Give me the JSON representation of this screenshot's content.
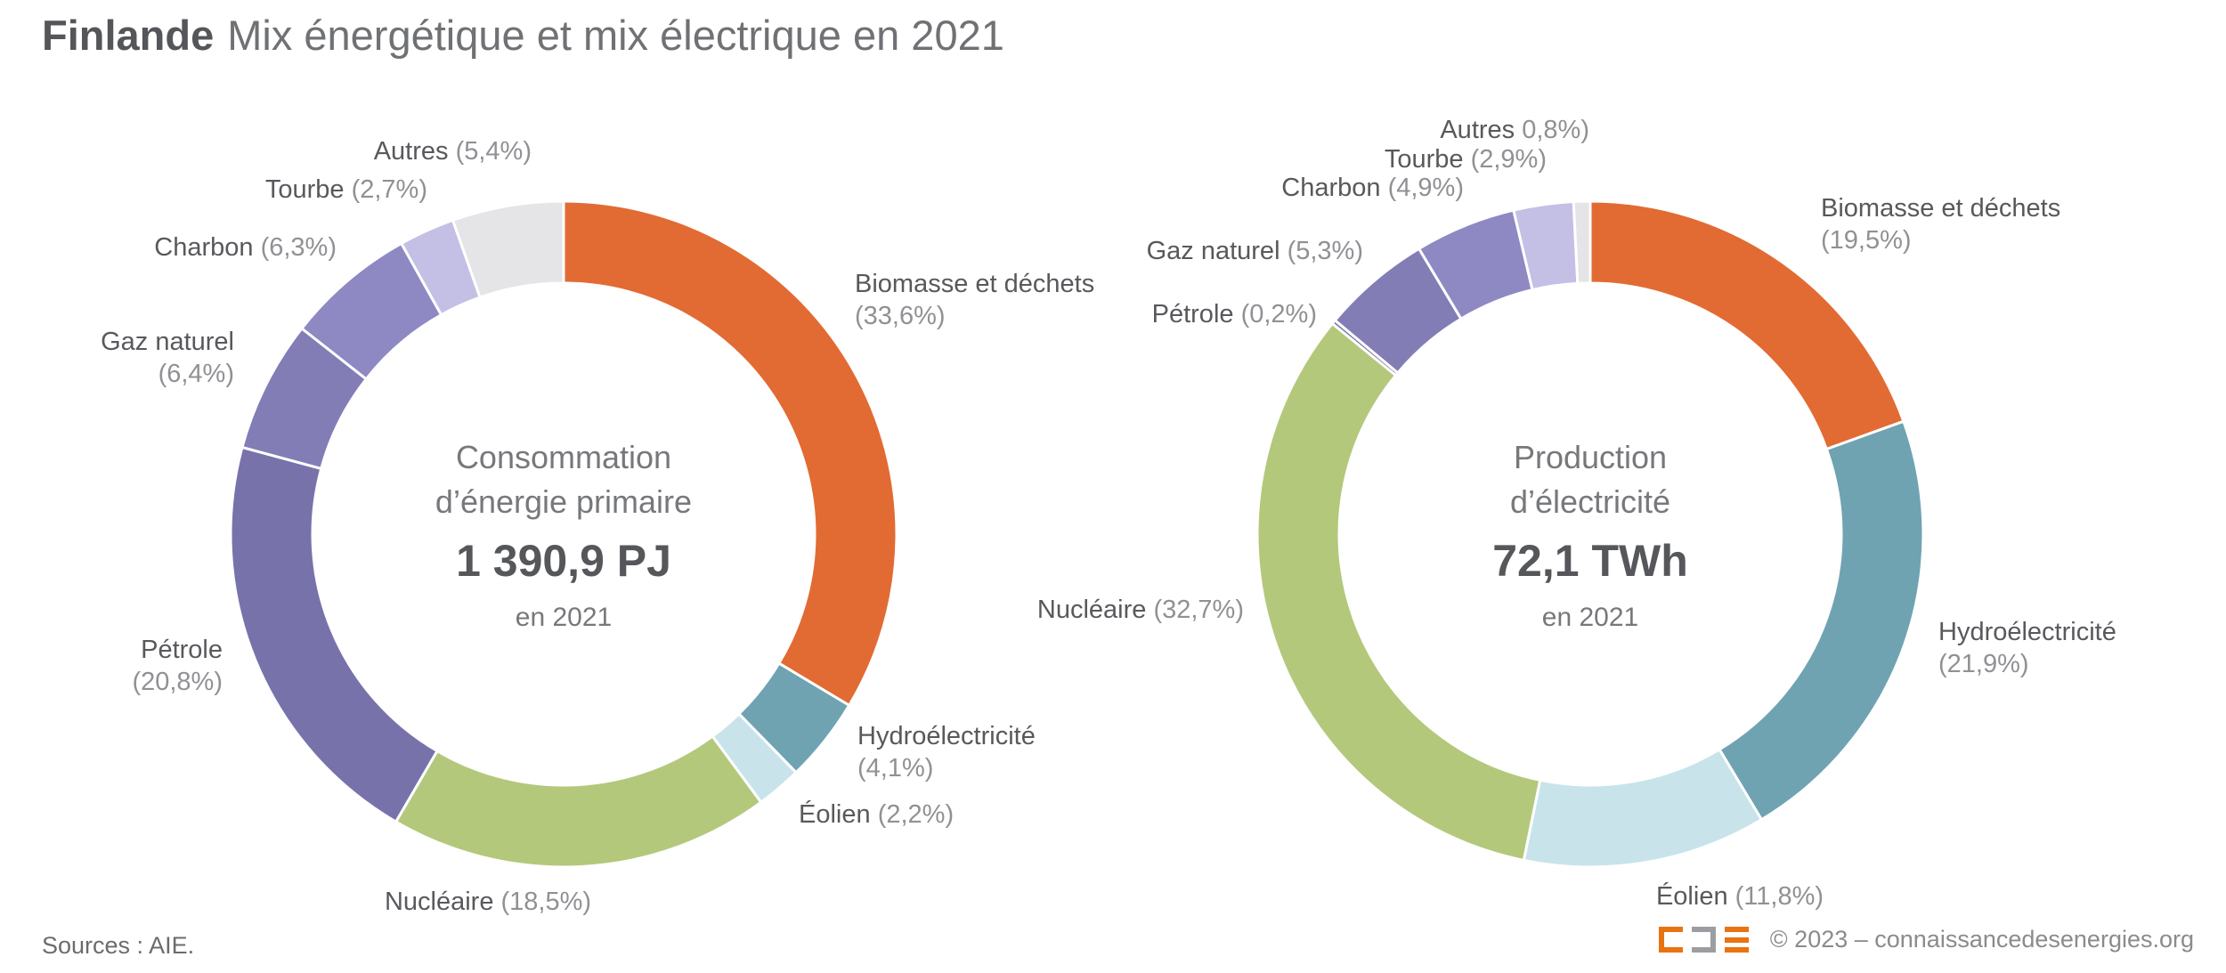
{
  "title": {
    "bold": "Finlande",
    "rest": "Mix énergétique et mix électrique en 2021"
  },
  "chart_data": [
    {
      "type": "pie",
      "subtype": "donut",
      "name": "mix-energetique",
      "center_title": [
        "Consommation",
        "d’énergie primaire"
      ],
      "center_value": "1 390,9 PJ",
      "center_year": "en 2021",
      "start_angle_deg": 0,
      "direction": "clockwise",
      "slices": [
        {
          "name": "Biomasse et déchets",
          "pct_text": "(33,6%)",
          "value": 33.6,
          "color": "#E26B33"
        },
        {
          "name": "Hydroélectricité",
          "pct_text": "(4,1%)",
          "value": 4.1,
          "color": "#6FA3B2"
        },
        {
          "name": "Éolien",
          "pct_text": "(2,2%)",
          "value": 2.2,
          "color": "#C8E4EA"
        },
        {
          "name": "Nucléaire",
          "pct_text": "(18,5%)",
          "value": 18.5,
          "color": "#B4C87C"
        },
        {
          "name": "Pétrole",
          "pct_text": "(20,8%)",
          "value": 20.8,
          "color": "#7872AB"
        },
        {
          "name": "Gaz naturel",
          "pct_text": "(6,4%)",
          "value": 6.4,
          "color": "#837DB6"
        },
        {
          "name": "Charbon",
          "pct_text": "(6,3%)",
          "value": 6.3,
          "color": "#8E89C2"
        },
        {
          "name": "Tourbe",
          "pct_text": "(2,7%)",
          "value": 2.7,
          "color": "#C3BFE5"
        },
        {
          "name": "Autres",
          "pct_text": "(5,4%)",
          "value": 5.4,
          "color": "#E5E5E7"
        }
      ]
    },
    {
      "type": "pie",
      "subtype": "donut",
      "name": "mix-electrique",
      "center_title": [
        "Production",
        "d’électricité"
      ],
      "center_value": "72,1 TWh",
      "center_year": "en 2021",
      "start_angle_deg": 0,
      "direction": "clockwise",
      "slices": [
        {
          "name": "Biomasse et déchets",
          "pct_text": "(19,5%)",
          "value": 19.5,
          "color": "#E26B33"
        },
        {
          "name": "Hydroélectricité",
          "pct_text": "(21,9%)",
          "value": 21.9,
          "color": "#6FA3B2"
        },
        {
          "name": "Éolien",
          "pct_text": "(11,8%)",
          "value": 11.8,
          "color": "#C8E4EA"
        },
        {
          "name": "Nucléaire",
          "pct_text": "(32,7%)",
          "value": 32.7,
          "color": "#B4C87C"
        },
        {
          "name": "Pétrole",
          "pct_text": "(0,2%)",
          "value": 0.2,
          "color": "#7872AB"
        },
        {
          "name": "Gaz naturel",
          "pct_text": "(5,3%)",
          "value": 5.3,
          "color": "#837DB6"
        },
        {
          "name": "Charbon",
          "pct_text": "(4,9%)",
          "value": 4.9,
          "color": "#8E89C2"
        },
        {
          "name": "Tourbe",
          "pct_text": "(2,9%)",
          "value": 2.9,
          "color": "#C3BFE5"
        },
        {
          "name": "Autres",
          "pct_text": "0,8%)",
          "value": 0.8,
          "color": "#E5E5E7"
        }
      ]
    }
  ],
  "footer": {
    "sources": "Sources : AIE.",
    "copyright": "© 2023 – connaissancedesenergies.org",
    "logo_orange": "#E87411",
    "logo_gray": "#9B9DA0"
  }
}
